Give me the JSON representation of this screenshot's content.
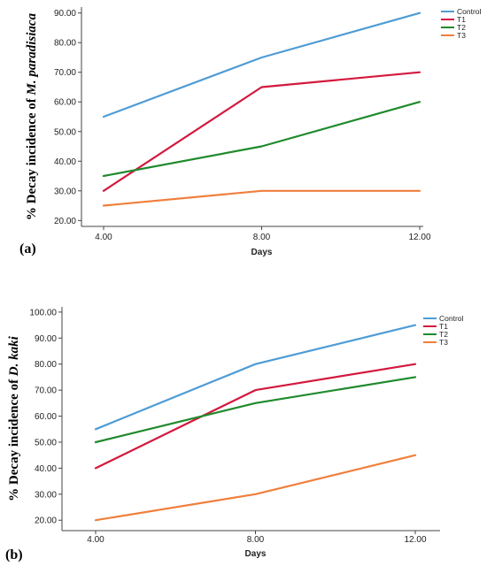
{
  "chart_data": [
    {
      "type": "line",
      "panel_label": "(a)",
      "ylabel_prefix": "% Decay incidence of ",
      "ylabel_species": "M. paradisiaca",
      "xlabel": "Days",
      "x": [
        4,
        8,
        12
      ],
      "x_tick_labels": [
        "4.00",
        "8.00",
        "12.00"
      ],
      "y_ticks": [
        20,
        30,
        40,
        50,
        60,
        70,
        80,
        90
      ],
      "y_tick_labels": [
        "20.00",
        "30.00",
        "40.00",
        "50.00",
        "60.00",
        "70.00",
        "80.00",
        "90.00"
      ],
      "ylim": [
        18,
        92
      ],
      "legend_position": "top-right",
      "series": [
        {
          "name": "Control",
          "color": "#4e9cd5",
          "values": [
            55,
            75,
            90
          ]
        },
        {
          "name": "T1",
          "color": "#d3193e",
          "values": [
            30,
            65,
            70
          ]
        },
        {
          "name": "T2",
          "color": "#1f8a2c",
          "values": [
            35,
            45,
            60
          ]
        },
        {
          "name": "T3",
          "color": "#f07f3c",
          "values": [
            25,
            30,
            30
          ]
        }
      ]
    },
    {
      "type": "line",
      "panel_label": "(b)",
      "ylabel_prefix": "% Decay incidence of ",
      "ylabel_species": "D. kaki",
      "xlabel": "Days",
      "x": [
        4,
        8,
        12
      ],
      "x_tick_labels": [
        "4.00",
        "8.00",
        "12.00"
      ],
      "y_ticks": [
        20,
        30,
        40,
        50,
        60,
        70,
        80,
        90,
        100
      ],
      "y_tick_labels": [
        "20.00",
        "30.00",
        "40.00",
        "50.00",
        "60.00",
        "70.00",
        "80.00",
        "90.00",
        "100.00"
      ],
      "ylim": [
        16,
        102
      ],
      "legend_position": "top-right",
      "series": [
        {
          "name": "Control",
          "color": "#4e9cd5",
          "values": [
            55,
            80,
            95
          ]
        },
        {
          "name": "T1",
          "color": "#d3193e",
          "values": [
            40,
            70,
            80
          ]
        },
        {
          "name": "T2",
          "color": "#1f8a2c",
          "values": [
            50,
            65,
            75
          ]
        },
        {
          "name": "T3",
          "color": "#f07f3c",
          "values": [
            20,
            30,
            45
          ]
        }
      ]
    }
  ]
}
